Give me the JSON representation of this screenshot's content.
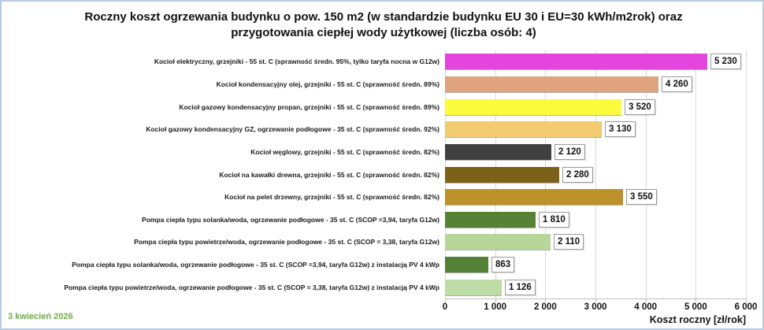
{
  "title": "Roczny koszt ogrzewania budynku o pow. 150 m2 (w standardzie budynku EU 30 i EU=30 kWh/m2rok) oraz przygotowania ciepłej wody użytkowej (liczba osób: 4)",
  "footer": {
    "date_note": "3 kwiecień 2026",
    "date_color": "#6FAE46"
  },
  "colors": {
    "frame_border": "#B7CCE2",
    "gridline": "#D9D9D9",
    "axis_line": "#BFBFBF",
    "value_box_border": "#9A9A9A"
  },
  "chart_data": {
    "type": "bar",
    "orientation": "horizontal",
    "title": "Roczny koszt ogrzewania budynku o pow. 150 m2 (w standardzie budynku EU 30 i EU=30 kWh/m2rok) oraz przygotowania ciepłej wody użytkowej (liczba osób: 4)",
    "xlabel": "Koszt roczny [zł/rok]",
    "xlim": [
      0,
      6000
    ],
    "xticks": [
      0,
      1000,
      2000,
      3000,
      4000,
      5000,
      6000
    ],
    "xtick_labels": [
      "0",
      "1 000",
      "2 000",
      "3 000",
      "4 000",
      "5 000",
      "6 000"
    ],
    "grid": true,
    "legend": "none",
    "categories": [
      "Kocioł  elektryczny,  grzejniki - 55 st. C  (sprawność średn. 95%, tylko taryfa nocna w G12w)",
      "Kocioł  kondensacyjny olej,  grzejniki - 55 st. C (sprawność średn. 89%)",
      "Kocioł gazowy kondensacyjny propan, grzejniki - 55 st. C (sprawność średn. 89%)",
      "Kocioł gazowy kondensacyjny GZ, ogrzewanie podłogowe - 35 st. C (sprawność średn. 92%)",
      "Kocioł węglowy,  grzejniki - 55 st. C (sprawność średn. 82%)",
      "Kocioł na kawałki drewna, grzejniki - 55 st. C (sprawność średn. 82%)",
      "Kocioł na pelet drzewny, grzejniki - 55 st. C (sprawność średn. 82%)",
      "Pompa ciepła typu solanka/woda, ogrzewanie podłogowe - 35 st. C (SCOP =3,94, taryfa G12w)",
      "Pompa ciepła typu powietrze/woda, ogrzewanie podłogowe - 35 st. C (SCOP = 3,38, taryfa G12w)",
      "Pompa ciepła typu solanka/woda, ogrzewanie podłogowe - 35 st. C (SCOP =3,94, taryfa G12w) z instalacją PV 4 kWp",
      "Pompa ciepła typu powietrze/woda, ogrzewanie podłogowe - 35 st. C (SCOP = 3,38, taryfa G12w) z instalacją PV 4 kWp"
    ],
    "values": [
      5230,
      4260,
      3520,
      3130,
      2120,
      2280,
      3550,
      1810,
      2110,
      863,
      1126
    ],
    "value_labels": [
      "5 230",
      "4 260",
      "3 520",
      "3 130",
      "2 120",
      "2 280",
      "3 550",
      "1 810",
      "2 110",
      "863",
      "1 126"
    ],
    "bar_colors": [
      "#E445DF",
      "#DFA47E",
      "#FBFB3E",
      "#F2CB71",
      "#404040",
      "#7C6218",
      "#BD9129",
      "#568233",
      "#B7D69A",
      "#538135",
      "#BEDCA6"
    ]
  }
}
